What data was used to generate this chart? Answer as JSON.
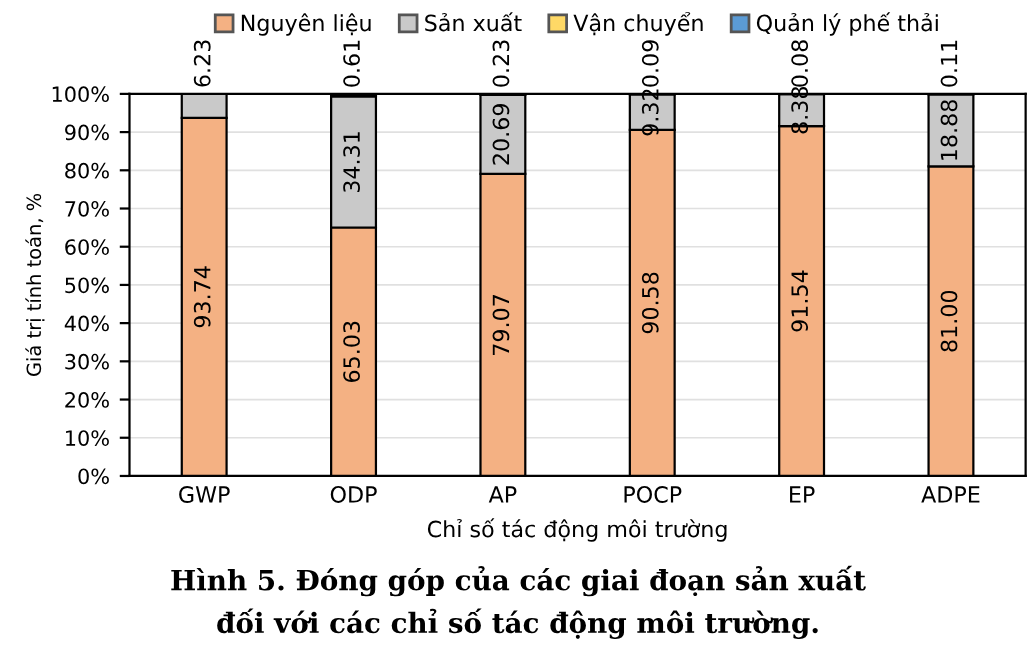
{
  "chart_data": {
    "type": "bar",
    "stacked": true,
    "xlabel": "Chỉ số tác động môi trường",
    "ylabel": "Giá trị tính toán, %",
    "categories": [
      "GWP",
      "ODP",
      "AP",
      "POCP",
      "EP",
      "ADPE"
    ],
    "series": [
      {
        "name": "Nguyên liệu",
        "color": "#f4b183",
        "values": [
          93.74,
          65.03,
          79.07,
          90.58,
          91.54,
          81.0
        ],
        "value_labels": [
          "93.74",
          "65.03",
          "79.07",
          "90.58",
          "91.54",
          "81.00"
        ]
      },
      {
        "name": "Sản xuất",
        "color": "#c9c9c9",
        "values": [
          6.23,
          34.31,
          20.69,
          9.32,
          8.38,
          18.88
        ],
        "value_labels": [
          "6.23",
          "34.31",
          "20.69",
          "9.32",
          "8.38",
          "18.88"
        ]
      },
      {
        "name": "Vận chuyển",
        "color": "#ffd966",
        "values": [
          null,
          0.61,
          0.23,
          0.09,
          0.08,
          0.11
        ],
        "value_labels": [
          null,
          "0.61",
          "0.23",
          "0.09",
          "0.08",
          "0.11"
        ]
      },
      {
        "name": "Quản lý phế thải",
        "color": "#5b9bd5",
        "values": [
          null,
          null,
          null,
          null,
          null,
          null
        ]
      }
    ],
    "ylim": [
      0,
      100
    ],
    "yticks": [
      {
        "value": 0,
        "label": "0%"
      },
      {
        "value": 10,
        "label": "10%"
      },
      {
        "value": 20,
        "label": "20%"
      },
      {
        "value": 30,
        "label": "30%"
      },
      {
        "value": 40,
        "label": "40%"
      },
      {
        "value": 50,
        "label": "50%"
      },
      {
        "value": 60,
        "label": "60%"
      },
      {
        "value": 70,
        "label": "70%"
      },
      {
        "value": 80,
        "label": "80%"
      },
      {
        "value": 90,
        "label": "90%"
      },
      {
        "value": 100,
        "label": "100%"
      }
    ],
    "grid": "y",
    "legend": "top",
    "annotations": [
      "Hình 5. Đóng góp của các giai đoạn sản xuất\nđối với các chỉ số tác động môi trường."
    ]
  }
}
